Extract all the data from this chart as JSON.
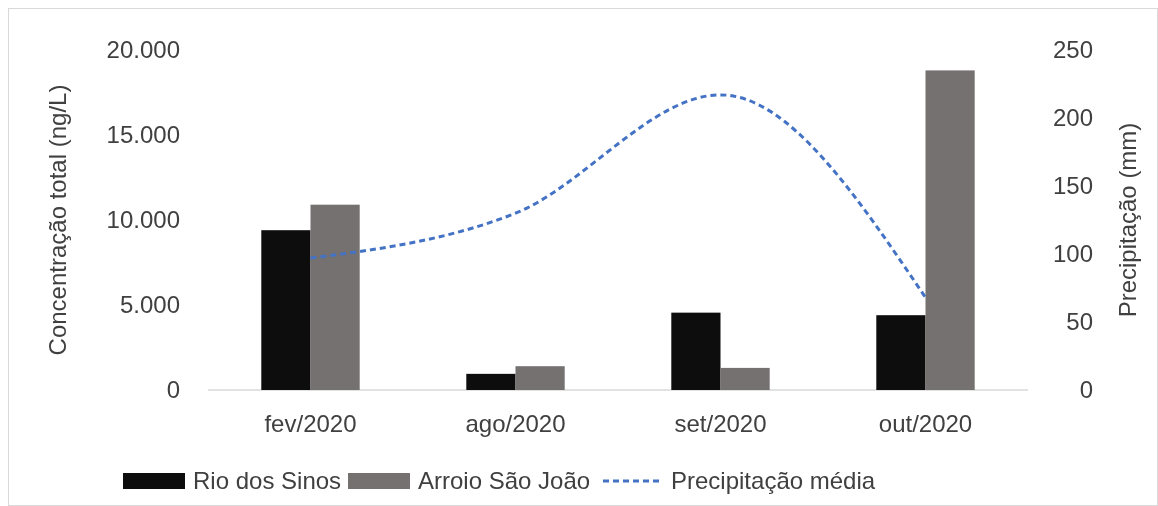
{
  "chart_data": {
    "type": "bar",
    "ylabel": "Concentração total (ng/L)",
    "y2label": "Precipitação (mm)",
    "categories": [
      "fev/2020",
      "ago/2020",
      "set/2020",
      "out/2020"
    ],
    "series": [
      {
        "name": "Rio dos Sinos",
        "color": "#0d0d0d",
        "values": [
          9400,
          950,
          4550,
          4400
        ]
      },
      {
        "name": "Arroio São João",
        "color": "#767171",
        "values": [
          10900,
          1400,
          1300,
          18800
        ]
      },
      {
        "name": "Precipitação média",
        "type": "line",
        "axis": "y2",
        "color": "#4472c4",
        "line_style": "dashed",
        "values": [
          97,
          130,
          217,
          68
        ]
      }
    ],
    "ylim": [
      0,
      20000
    ],
    "yticks": [
      {
        "value": 0,
        "label": "0"
      },
      {
        "value": 5000,
        "label": "5.000"
      },
      {
        "value": 10000,
        "label": "10.000"
      },
      {
        "value": 15000,
        "label": "15.000"
      },
      {
        "value": 20000,
        "label": "20.000"
      }
    ],
    "y2lim": [
      0,
      250
    ],
    "y2ticks": [
      0,
      50,
      100,
      150,
      200,
      250
    ],
    "legend": "bottom"
  }
}
